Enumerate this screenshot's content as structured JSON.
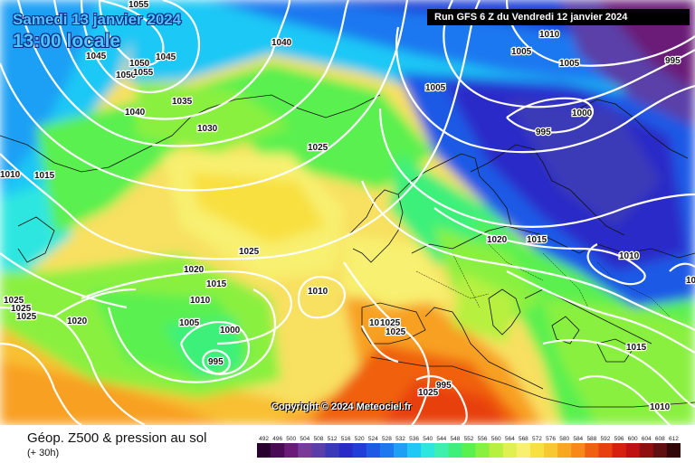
{
  "header": {
    "date": "Samedi 13 janvier 2024",
    "time": "13:00 locale",
    "run": "Run GFS 6 Z du Vendredi 12 janvier 2024"
  },
  "footer": {
    "parameter": "Géop. Z500 & pression au sol",
    "forecast_hour": "(+ 30h)",
    "copyright": "Copyright © 2024 Meteociel.fr"
  },
  "legend": {
    "values": [
      "492",
      "496",
      "500",
      "504",
      "508",
      "512",
      "516",
      "520",
      "524",
      "528",
      "532",
      "536",
      "540",
      "544",
      "548",
      "552",
      "556",
      "560",
      "564",
      "568",
      "572",
      "576",
      "580",
      "584",
      "588",
      "592",
      "596",
      "600",
      "604",
      "608",
      "612"
    ],
    "colors": [
      "#2a0030",
      "#4a0a55",
      "#6a1a78",
      "#7a3a98",
      "#5a3fa8",
      "#3a3ab8",
      "#2a2ac8",
      "#1f3fd8",
      "#1f5ae6",
      "#1f78f0",
      "#1fa0f5",
      "#1fc8f5",
      "#2ee6e0",
      "#3ef0b0",
      "#3ef07a",
      "#5af050",
      "#8af040",
      "#b8f040",
      "#e0f050",
      "#f8f070",
      "#f8e040",
      "#f8c830",
      "#f8a820",
      "#f88818",
      "#f06010",
      "#e84010",
      "#d82010",
      "#c01010",
      "#901010",
      "#601010",
      "#300808"
    ]
  },
  "isobars": [
    {
      "label": "1055"
    },
    {
      "label": "1045"
    },
    {
      "label": "1045"
    },
    {
      "label": "1050"
    },
    {
      "label": "1055"
    },
    {
      "label": "1050"
    },
    {
      "label": "1040"
    },
    {
      "label": "1040"
    },
    {
      "label": "1035"
    },
    {
      "label": "1030"
    },
    {
      "label": "1025"
    },
    {
      "label": "1010"
    },
    {
      "label": "1015"
    },
    {
      "label": "1005"
    },
    {
      "label": "1010"
    },
    {
      "label": "1005"
    },
    {
      "label": "995"
    },
    {
      "label": "1005"
    },
    {
      "label": "1000"
    },
    {
      "label": "995"
    },
    {
      "label": "1025"
    },
    {
      "label": "1020"
    },
    {
      "label": "1015"
    },
    {
      "label": "1010"
    },
    {
      "label": "1005"
    },
    {
      "label": "1000"
    },
    {
      "label": "995"
    },
    {
      "label": "1010"
    },
    {
      "label": "1025"
    },
    {
      "label": "1025"
    },
    {
      "label": "1025"
    },
    {
      "label": "1020"
    },
    {
      "label": "1010"
    },
    {
      "label": "1025"
    },
    {
      "label": "1025"
    },
    {
      "label": "1025"
    },
    {
      "label": "1020"
    },
    {
      "label": "1015"
    },
    {
      "label": "1010"
    },
    {
      "label": "1015"
    },
    {
      "label": "1010"
    },
    {
      "label": "1010"
    },
    {
      "label": "995"
    }
  ]
}
